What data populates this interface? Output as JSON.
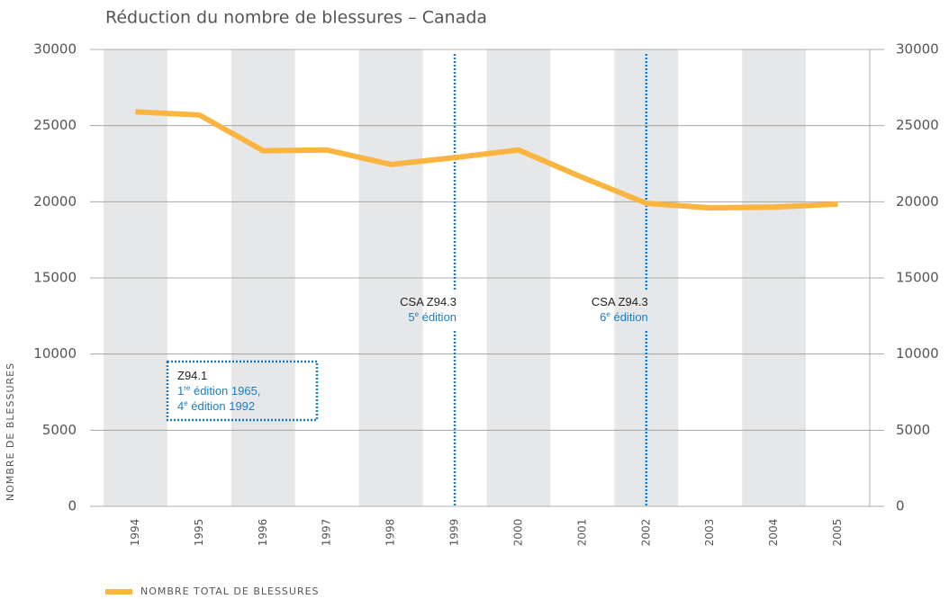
{
  "chart_data": {
    "type": "line",
    "title": "Réduction du nombre de blessures – Canada",
    "y_label": "NOMBRE DE BLESSURES",
    "categories": [
      "1994",
      "1995",
      "1996",
      "1997",
      "1998",
      "1999",
      "2000",
      "2001",
      "2002",
      "2003",
      "2004",
      "2005"
    ],
    "series": [
      {
        "name": "NOMBRE TOTAL DE BLESSURES",
        "color": "#f9b540",
        "values": [
          25900,
          25700,
          23350,
          23400,
          22450,
          22900,
          23400,
          21600,
          19900,
          19600,
          19650,
          19850
        ]
      }
    ],
    "ylim": [
      0,
      30000
    ],
    "yticks": [
      0,
      5000,
      10000,
      15000,
      20000,
      25000,
      30000
    ],
    "y2lim": [
      0,
      30000
    ],
    "y2ticks": [
      0,
      5000,
      10000,
      15000,
      20000,
      25000,
      30000
    ],
    "grid": true,
    "annotations": [
      {
        "x": "1999",
        "lines": [
          [
            {
              "text": "CSA Z94.3"
            }
          ],
          [
            {
              "text": "5"
            },
            {
              "text": "e",
              "sup": true
            },
            {
              "text": " édition"
            }
          ]
        ]
      },
      {
        "x": "2002",
        "lines": [
          [
            {
              "text": "CSA Z94.3"
            }
          ],
          [
            {
              "text": "6"
            },
            {
              "text": "e",
              "sup": true
            },
            {
              "text": " édition"
            }
          ]
        ]
      }
    ],
    "box_annotation": {
      "lines": [
        [
          {
            "text": "Z94.1"
          }
        ],
        [
          {
            "text": "1"
          },
          {
            "text": "re",
            "sup": true
          },
          {
            "text": " édition 1965,"
          }
        ],
        [
          {
            "text": "4"
          },
          {
            "text": "e",
            "sup": true
          },
          {
            "text": " édition 1992"
          }
        ]
      ]
    }
  }
}
